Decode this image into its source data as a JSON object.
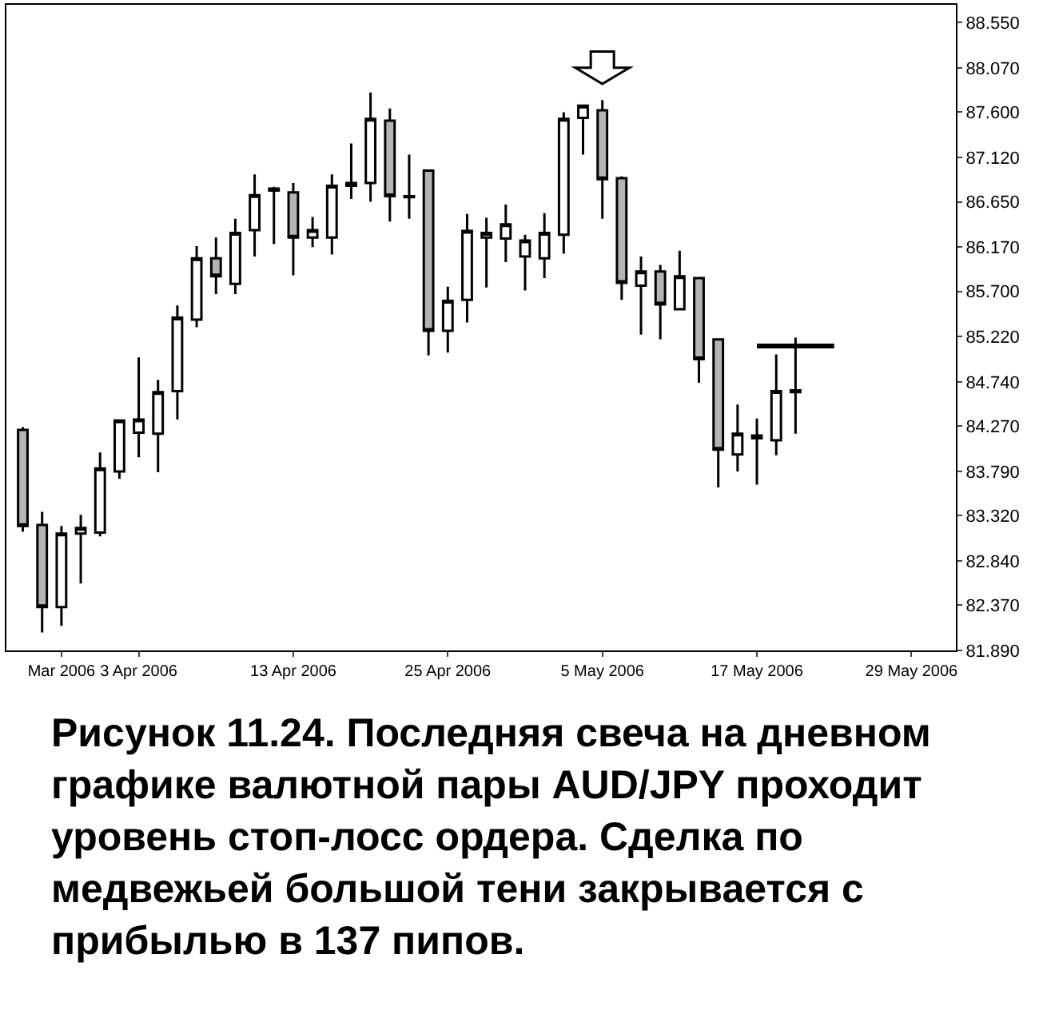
{
  "chart_data": {
    "type": "candlestick",
    "categories": [
      null,
      null,
      "Mar 2006",
      null,
      null,
      null,
      "3 Apr 2006",
      null,
      null,
      null,
      null,
      null,
      null,
      null,
      "13 Apr 2006",
      null,
      null,
      null,
      null,
      null,
      null,
      null,
      "25 Apr 2006",
      null,
      null,
      null,
      null,
      null,
      null,
      null,
      "5 May 2006",
      null,
      null,
      null,
      null,
      null,
      null,
      null,
      "17 May 2006",
      null,
      null,
      null,
      null,
      null,
      null,
      null,
      "29 May 2006"
    ],
    "ohlc": [
      [
        84.23,
        84.26,
        83.15,
        83.21
      ],
      [
        83.22,
        83.36,
        82.08,
        82.35
      ],
      [
        82.35,
        83.21,
        82.15,
        83.13
      ],
      [
        83.13,
        83.33,
        82.6,
        83.19
      ],
      [
        83.14,
        83.99,
        83.1,
        83.82
      ],
      [
        83.79,
        84.33,
        83.71,
        84.33
      ],
      [
        84.2,
        85.0,
        83.94,
        84.34
      ],
      [
        84.19,
        84.76,
        83.78,
        84.63
      ],
      [
        84.64,
        85.55,
        84.34,
        85.42
      ],
      [
        85.4,
        86.18,
        85.32,
        86.05
      ],
      [
        86.05,
        86.27,
        85.67,
        85.86
      ],
      [
        85.78,
        86.47,
        85.67,
        86.32
      ],
      [
        86.35,
        86.94,
        86.07,
        86.72
      ],
      [
        86.77,
        86.81,
        86.2,
        86.79
      ],
      [
        86.75,
        86.85,
        85.87,
        86.27
      ],
      [
        86.27,
        86.49,
        86.17,
        86.35
      ],
      [
        86.27,
        86.94,
        86.09,
        86.82
      ],
      [
        86.82,
        87.27,
        86.68,
        86.85
      ],
      [
        86.85,
        87.81,
        86.65,
        87.53
      ],
      [
        87.51,
        87.64,
        86.44,
        86.71
      ],
      [
        86.71,
        87.15,
        86.47,
        86.7
      ],
      [
        86.98,
        86.99,
        85.02,
        85.28
      ],
      [
        85.28,
        85.75,
        85.05,
        85.6
      ],
      [
        85.61,
        86.52,
        85.37,
        86.34
      ],
      [
        86.27,
        86.48,
        85.74,
        86.32
      ],
      [
        86.26,
        86.62,
        86.01,
        86.41
      ],
      [
        86.07,
        86.3,
        85.71,
        86.24
      ],
      [
        86.05,
        86.53,
        85.84,
        86.32
      ],
      [
        86.3,
        87.6,
        86.1,
        87.53
      ],
      [
        87.54,
        87.67,
        87.15,
        87.67
      ],
      [
        87.62,
        87.73,
        86.47,
        86.89
      ],
      [
        86.9,
        86.92,
        85.61,
        85.79
      ],
      [
        85.76,
        86.07,
        85.24,
        85.91
      ],
      [
        85.91,
        85.98,
        85.19,
        85.56
      ],
      [
        85.51,
        86.13,
        85.5,
        85.86
      ],
      [
        85.84,
        85.85,
        84.73,
        84.98
      ],
      [
        85.19,
        85.19,
        83.62,
        84.02
      ],
      [
        83.97,
        84.5,
        83.79,
        84.19
      ],
      [
        84.14,
        84.35,
        83.65,
        84.17
      ],
      [
        84.12,
        85.03,
        83.96,
        84.64
      ],
      [
        84.63,
        85.21,
        84.19,
        84.65
      ],
      null,
      null,
      null,
      null,
      null,
      null
    ],
    "series": [
      {
        "type": "line",
        "values": [
          null,
          null,
          null,
          null,
          null,
          null,
          null,
          null,
          null,
          null,
          null,
          null,
          null,
          null,
          null,
          null,
          null,
          null,
          null,
          null,
          null,
          null,
          null,
          null,
          null,
          null,
          null,
          null,
          null,
          null,
          null,
          null,
          null,
          null,
          null,
          null,
          null,
          null,
          85.12,
          85.12,
          85.12,
          85.12,
          85.12,
          null,
          null,
          null,
          null
        ],
        "color": "#000000"
      }
    ],
    "ylim": [
      81.89,
      88.74
    ],
    "yticks": [
      {
        "value": 81.89,
        "label": "81.890"
      },
      {
        "value": 82.37,
        "label": "82.370"
      },
      {
        "value": 82.84,
        "label": "82.840"
      },
      {
        "value": 83.32,
        "label": "83.320"
      },
      {
        "value": 83.79,
        "label": "83.790"
      },
      {
        "value": 84.27,
        "label": "84.270"
      },
      {
        "value": 84.74,
        "label": "84.740"
      },
      {
        "value": 85.22,
        "label": "85.220"
      },
      {
        "value": 85.7,
        "label": "85.700"
      },
      {
        "value": 86.17,
        "label": "86.170"
      },
      {
        "value": 86.65,
        "label": "86.650"
      },
      {
        "value": 87.12,
        "label": "87.120"
      },
      {
        "value": 87.6,
        "label": "87.600"
      },
      {
        "value": 88.07,
        "label": "88.070"
      },
      {
        "value": 88.55,
        "label": "88.550"
      }
    ],
    "annotations": [
      "Рисунок 11.24. Последняя свеча на дневном графике валютной пары AUD/JPY проходит уровень стоп-лосс ордера. Сделка по медвежьей большой тени закрывается с прибылью в 137 пипов."
    ]
  }
}
